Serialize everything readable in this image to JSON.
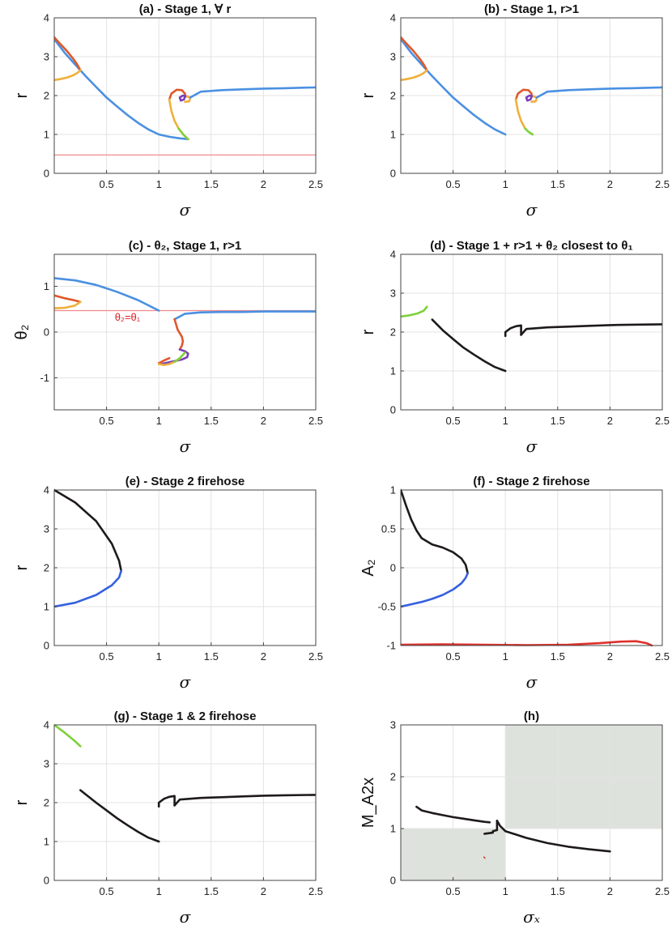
{
  "colors": {
    "blue": "#4a90e2",
    "orange": "#e0582a",
    "yellow": "#efb03a",
    "purple": "#7a3fb8",
    "green": "#7ed03a",
    "black": "#1e1a1a",
    "red": "#e0302a",
    "pink": "#f08a8a",
    "royal": "#3560e0",
    "shade": "#dee2dc"
  },
  "chart_data": [
    {
      "id": "a",
      "type": "line",
      "title": "(a) - Stage 1, ∀ r",
      "xlabel": "σ",
      "ylabel": "r",
      "xlim": [
        0,
        2.5
      ],
      "ylim": [
        0,
        4
      ],
      "xticks": [
        0.5,
        1,
        1.5,
        2,
        2.5
      ],
      "yticks": [
        0,
        1,
        2,
        3,
        4
      ],
      "grid": true,
      "series": [
        {
          "color": "blue",
          "x": [
            0,
            0.1,
            0.2,
            0.3,
            0.4,
            0.5,
            0.6,
            0.7,
            0.8,
            0.9,
            1.0,
            1.1,
            1.2,
            1.28
          ],
          "y": [
            3.45,
            3.1,
            2.8,
            2.5,
            2.22,
            1.95,
            1.72,
            1.5,
            1.3,
            1.13,
            1.0,
            0.94,
            0.9,
            0.88
          ]
        },
        {
          "color": "orange",
          "x": [
            0,
            0.05,
            0.12,
            0.18,
            0.22,
            0.25
          ],
          "y": [
            3.5,
            3.35,
            3.15,
            2.95,
            2.8,
            2.65
          ]
        },
        {
          "color": "yellow",
          "x": [
            0,
            0.05,
            0.12,
            0.18,
            0.22,
            0.25
          ],
          "y": [
            2.4,
            2.42,
            2.46,
            2.52,
            2.58,
            2.65
          ]
        },
        {
          "color": "orange",
          "x": [
            1.1,
            1.12,
            1.17,
            1.22,
            1.25,
            1.25
          ],
          "y": [
            1.9,
            2.05,
            2.15,
            2.14,
            2.05,
            1.97
          ]
        },
        {
          "color": "yellow",
          "x": [
            1.1,
            1.12,
            1.15,
            1.19,
            1.24,
            1.28
          ],
          "y": [
            1.9,
            1.6,
            1.35,
            1.15,
            0.98,
            0.88
          ]
        },
        {
          "color": "purple",
          "x": [
            1.25,
            1.24,
            1.21,
            1.2,
            1.23,
            1.27
          ],
          "y": [
            1.97,
            1.9,
            1.87,
            1.95,
            2.0,
            1.98
          ]
        },
        {
          "color": "yellow",
          "x": [
            1.27,
            1.3,
            1.29,
            1.25
          ],
          "y": [
            1.98,
            1.95,
            1.85,
            1.84
          ]
        },
        {
          "color": "blue",
          "x": [
            1.3,
            1.4,
            1.6,
            1.8,
            2.0,
            2.2,
            2.5
          ],
          "y": [
            1.95,
            2.1,
            2.14,
            2.16,
            2.18,
            2.19,
            2.21
          ]
        },
        {
          "color": "green",
          "x": [
            1.19,
            1.24,
            1.28
          ],
          "y": [
            1.15,
            0.98,
            0.88
          ]
        },
        {
          "color": "pink",
          "x": [
            0,
            2.5
          ],
          "y": [
            0.47,
            0.47
          ],
          "width": 1.2
        }
      ]
    },
    {
      "id": "b",
      "type": "line",
      "title": "(b) - Stage 1, r>1",
      "xlabel": "σ",
      "ylabel": "r",
      "xlim": [
        0,
        2.5
      ],
      "ylim": [
        0,
        4
      ],
      "xticks": [
        0.5,
        1,
        1.5,
        2,
        2.5
      ],
      "yticks": [
        0,
        1,
        2,
        3,
        4
      ],
      "grid": true,
      "series": [
        {
          "color": "blue",
          "x": [
            0,
            0.1,
            0.2,
            0.3,
            0.4,
            0.5,
            0.6,
            0.7,
            0.8,
            0.9,
            1.0
          ],
          "y": [
            3.45,
            3.1,
            2.8,
            2.5,
            2.22,
            1.95,
            1.72,
            1.5,
            1.3,
            1.13,
            1.0
          ]
        },
        {
          "color": "orange",
          "x": [
            0,
            0.05,
            0.12,
            0.18,
            0.22,
            0.25
          ],
          "y": [
            3.5,
            3.35,
            3.15,
            2.95,
            2.8,
            2.65
          ]
        },
        {
          "color": "yellow",
          "x": [
            0,
            0.05,
            0.12,
            0.18,
            0.22,
            0.25
          ],
          "y": [
            2.4,
            2.42,
            2.46,
            2.52,
            2.58,
            2.65
          ]
        },
        {
          "color": "orange",
          "x": [
            1.1,
            1.12,
            1.17,
            1.22,
            1.25,
            1.25
          ],
          "y": [
            1.9,
            2.05,
            2.15,
            2.14,
            2.05,
            1.97
          ]
        },
        {
          "color": "yellow",
          "x": [
            1.1,
            1.12,
            1.15,
            1.19
          ],
          "y": [
            1.9,
            1.6,
            1.35,
            1.15
          ]
        },
        {
          "color": "purple",
          "x": [
            1.25,
            1.24,
            1.21,
            1.2,
            1.23,
            1.27
          ],
          "y": [
            1.97,
            1.9,
            1.87,
            1.95,
            2.0,
            1.98
          ]
        },
        {
          "color": "yellow",
          "x": [
            1.27,
            1.3,
            1.29,
            1.25
          ],
          "y": [
            1.98,
            1.95,
            1.85,
            1.84
          ]
        },
        {
          "color": "blue",
          "x": [
            1.3,
            1.4,
            1.6,
            1.8,
            2.0,
            2.2,
            2.5
          ],
          "y": [
            1.95,
            2.1,
            2.14,
            2.16,
            2.18,
            2.19,
            2.21
          ]
        },
        {
          "color": "green",
          "x": [
            1.19,
            1.22,
            1.26
          ],
          "y": [
            1.15,
            1.07,
            1.0
          ]
        }
      ]
    },
    {
      "id": "c",
      "type": "line",
      "title": "(c) - θ₂, Stage 1, r>1",
      "xlabel": "σ",
      "ylabel": "θ₂",
      "xlim": [
        0,
        2.5
      ],
      "ylim": [
        -1.7,
        1.7
      ],
      "xticks": [
        0.5,
        1,
        1.5,
        2,
        2.5
      ],
      "yticks": [
        -1,
        0,
        1
      ],
      "grid": true,
      "annotation": {
        "text": "θ₂=θ₁",
        "x": 0.7,
        "y": 0.25
      },
      "series": [
        {
          "color": "pink",
          "x": [
            0,
            2.5
          ],
          "y": [
            0.47,
            0.47
          ],
          "width": 1.2
        },
        {
          "color": "blue",
          "x": [
            0,
            0.2,
            0.4,
            0.6,
            0.8,
            1.0
          ],
          "y": [
            1.18,
            1.13,
            1.03,
            0.88,
            0.7,
            0.47
          ]
        },
        {
          "color": "orange",
          "x": [
            0,
            0.1,
            0.2,
            0.25
          ],
          "y": [
            0.8,
            0.74,
            0.69,
            0.66
          ]
        },
        {
          "color": "yellow",
          "x": [
            0,
            0.1,
            0.2,
            0.25
          ],
          "y": [
            0.52,
            0.53,
            0.58,
            0.66
          ]
        },
        {
          "color": "blue",
          "x": [
            1.15,
            1.25,
            1.4,
            1.6,
            1.8,
            2.0,
            2.5
          ],
          "y": [
            0.28,
            0.4,
            0.43,
            0.44,
            0.44,
            0.45,
            0.45
          ]
        },
        {
          "color": "orange",
          "x": [
            1.15,
            1.18,
            1.22,
            1.23,
            1.22,
            1.2
          ],
          "y": [
            0.28,
            0.05,
            -0.1,
            -0.2,
            -0.3,
            -0.38
          ]
        },
        {
          "color": "purple",
          "x": [
            1.2,
            1.25,
            1.28,
            1.27,
            1.22,
            1.12,
            1.02
          ],
          "y": [
            -0.38,
            -0.42,
            -0.47,
            -0.55,
            -0.6,
            -0.65,
            -0.7
          ]
        },
        {
          "color": "orange",
          "x": [
            1.0,
            1.05,
            1.1
          ],
          "y": [
            -0.68,
            -0.62,
            -0.57
          ]
        },
        {
          "color": "yellow",
          "x": [
            1.0,
            1.05,
            1.1,
            1.15,
            1.2
          ],
          "y": [
            -0.7,
            -0.72,
            -0.7,
            -0.65,
            -0.58
          ]
        },
        {
          "color": "green",
          "x": [
            1.15,
            1.2,
            1.25
          ],
          "y": [
            -0.65,
            -0.57,
            -0.45
          ]
        }
      ]
    },
    {
      "id": "d",
      "type": "line",
      "title": "(d) - Stage 1 + r>1 + θ₂ closest to θ₁",
      "xlabel": "σ",
      "ylabel": "r",
      "xlim": [
        0,
        2.5
      ],
      "ylim": [
        0,
        4
      ],
      "xticks": [
        0.5,
        1,
        1.5,
        2,
        2.5
      ],
      "yticks": [
        0,
        1,
        2,
        3,
        4
      ],
      "grid": true,
      "series": [
        {
          "color": "green",
          "x": [
            0,
            0.08,
            0.16,
            0.22,
            0.25
          ],
          "y": [
            2.4,
            2.43,
            2.48,
            2.55,
            2.65
          ]
        },
        {
          "color": "black",
          "x": [
            0.3,
            0.4,
            0.5,
            0.6,
            0.7,
            0.8,
            0.9,
            1.0
          ],
          "y": [
            2.32,
            2.05,
            1.82,
            1.6,
            1.42,
            1.25,
            1.1,
            1.0
          ]
        },
        {
          "color": "black",
          "x": [
            1.0,
            1.0,
            1.05,
            1.1,
            1.15,
            1.15
          ],
          "y": [
            1.9,
            2.0,
            2.1,
            2.15,
            2.17,
            1.93
          ]
        },
        {
          "color": "black",
          "x": [
            1.15,
            1.2,
            1.4,
            1.6,
            1.8,
            2.0,
            2.2,
            2.5
          ],
          "y": [
            1.93,
            2.08,
            2.12,
            2.14,
            2.16,
            2.18,
            2.19,
            2.2
          ]
        }
      ]
    },
    {
      "id": "e",
      "type": "line",
      "title": "(e) - Stage 2 firehose",
      "xlabel": "σ",
      "ylabel": "r",
      "xlim": [
        0,
        2.5
      ],
      "ylim": [
        0,
        4
      ],
      "xticks": [
        0.5,
        1,
        1.5,
        2,
        2.5
      ],
      "yticks": [
        0,
        1,
        2,
        3,
        4
      ],
      "grid": true,
      "series": [
        {
          "color": "black",
          "x": [
            0,
            0.2,
            0.4,
            0.55,
            0.62,
            0.64
          ],
          "y": [
            4.0,
            3.68,
            3.2,
            2.62,
            2.18,
            1.92
          ]
        },
        {
          "color": "royal",
          "x": [
            0,
            0.2,
            0.4,
            0.55,
            0.62,
            0.64
          ],
          "y": [
            1.0,
            1.1,
            1.3,
            1.55,
            1.75,
            1.92
          ]
        }
      ]
    },
    {
      "id": "f",
      "type": "line",
      "title": "(f) - Stage 2 firehose",
      "xlabel": "σ",
      "ylabel": "A₂",
      "xlim": [
        0,
        2.5
      ],
      "ylim": [
        -1,
        1
      ],
      "xticks": [
        0.5,
        1,
        1.5,
        2,
        2.5
      ],
      "yticks": [
        -1,
        -0.5,
        0,
        0.5,
        1
      ],
      "grid": true,
      "series": [
        {
          "color": "black",
          "x": [
            0,
            0.05,
            0.1,
            0.15,
            0.2,
            0.3,
            0.4,
            0.5,
            0.58,
            0.62,
            0.64
          ],
          "y": [
            1.0,
            0.8,
            0.62,
            0.48,
            0.38,
            0.3,
            0.26,
            0.2,
            0.12,
            0.04,
            -0.07
          ]
        },
        {
          "color": "royal",
          "x": [
            0,
            0.1,
            0.2,
            0.3,
            0.4,
            0.5,
            0.58,
            0.62,
            0.64
          ],
          "y": [
            -0.5,
            -0.47,
            -0.44,
            -0.4,
            -0.35,
            -0.28,
            -0.2,
            -0.13,
            -0.07
          ]
        },
        {
          "color": "red",
          "x": [
            0,
            0.4,
            0.8,
            1.2,
            1.6,
            1.9,
            2.1,
            2.25,
            2.35,
            2.4
          ],
          "y": [
            -0.99,
            -0.985,
            -0.99,
            -0.995,
            -0.99,
            -0.97,
            -0.95,
            -0.945,
            -0.97,
            -1.0
          ]
        }
      ]
    },
    {
      "id": "g",
      "type": "line",
      "title": "(g) - Stage 1 & 2 firehose",
      "xlabel": "σ",
      "ylabel": "r",
      "xlim": [
        0,
        2.5
      ],
      "ylim": [
        0,
        4
      ],
      "xticks": [
        0.5,
        1,
        1.5,
        2,
        2.5
      ],
      "yticks": [
        0,
        1,
        2,
        3,
        4
      ],
      "grid": true,
      "series": [
        {
          "color": "green",
          "x": [
            0,
            0.1,
            0.2,
            0.25
          ],
          "y": [
            4.0,
            3.8,
            3.58,
            3.45
          ]
        },
        {
          "color": "black",
          "x": [
            0.25,
            0.4,
            0.5,
            0.6,
            0.7,
            0.8,
            0.9,
            1.0
          ],
          "y": [
            2.32,
            2.0,
            1.8,
            1.6,
            1.42,
            1.25,
            1.1,
            1.0
          ]
        },
        {
          "color": "black",
          "x": [
            1.0,
            1.0,
            1.05,
            1.1,
            1.15,
            1.15
          ],
          "y": [
            1.9,
            2.0,
            2.1,
            2.15,
            2.17,
            1.93
          ]
        },
        {
          "color": "black",
          "x": [
            1.15,
            1.2,
            1.4,
            1.6,
            1.8,
            2.0,
            2.2,
            2.5
          ],
          "y": [
            1.93,
            2.08,
            2.12,
            2.14,
            2.16,
            2.18,
            2.19,
            2.2
          ]
        }
      ]
    },
    {
      "id": "h",
      "type": "line",
      "title": "(h)",
      "xlabel": "σₓ",
      "ylabel": "M_A2x",
      "xlim": [
        0,
        2.5
      ],
      "ylim": [
        0,
        3
      ],
      "xticks": [
        0.5,
        1,
        1.5,
        2,
        2.5
      ],
      "yticks": [
        0,
        1,
        2,
        3
      ],
      "grid": true,
      "shaded": [
        {
          "x": [
            0,
            1
          ],
          "y": [
            0,
            1
          ]
        },
        {
          "x": [
            1,
            2.5
          ],
          "y": [
            1,
            3
          ]
        }
      ],
      "series": [
        {
          "color": "black",
          "x": [
            0.15,
            0.2,
            0.3,
            0.4,
            0.5,
            0.6,
            0.7,
            0.8,
            0.85
          ],
          "y": [
            1.42,
            1.35,
            1.3,
            1.26,
            1.22,
            1.19,
            1.16,
            1.13,
            1.12
          ]
        },
        {
          "color": "black",
          "x": [
            0.8,
            0.88,
            0.88,
            0.92,
            0.92
          ],
          "y": [
            0.9,
            0.92,
            0.95,
            0.97,
            1.15
          ]
        },
        {
          "color": "black",
          "x": [
            0.92,
            0.95,
            1.0,
            1.2,
            1.4,
            1.6,
            1.8,
            2.0
          ],
          "y": [
            1.15,
            1.05,
            0.95,
            0.82,
            0.72,
            0.65,
            0.6,
            0.56
          ]
        },
        {
          "color": "red",
          "x": [
            0.795,
            0.805
          ],
          "y": [
            0.45,
            0.43
          ],
          "width": 1.5
        }
      ]
    }
  ]
}
